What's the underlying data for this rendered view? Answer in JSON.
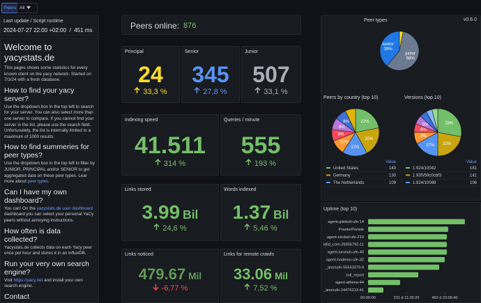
{
  "nav": {
    "tab": "Peers",
    "filter": "All"
  },
  "update": {
    "title": "Last update / Script runtime",
    "time": "2024-07-27 22:00 +02:00",
    "separator": "/",
    "runtime": "451 ms"
  },
  "welcome": {
    "title": "Welcome to yacystats.de",
    "intro": "This pages shows some statistics for every known client on the yacy network. Started on 7/3/24 with a fresh database.",
    "sections": [
      {
        "heading": "How to find your yacy server?",
        "body": [
          {
            "text": "Use the dropdown box in the top left to search for your server. You can also select more than one server to compare. If you cannot find your server in the list, please use the search field. Unfortunately, the list is internally limited to a maximum of 1000 results."
          }
        ]
      },
      {
        "heading": "How to find summeries for peer types?",
        "body": [
          {
            "text": "Use the dropdown box in the top left to filter by JUNIOR, PRINCIPAL and/or SENIOR to get aggregated data on these peer types. Lear more about "
          },
          {
            "link": "peer types"
          },
          {
            "text": "."
          }
        ]
      },
      {
        "heading": "Can I have my own dashboard?",
        "body": [
          {
            "text": "You can! On the "
          },
          {
            "link": "yacystats.de user dashboard"
          },
          {
            "text": " dashboard you can select your personal YaCy peers without annoying instructions."
          }
        ]
      },
      {
        "heading": "How often is data collected?",
        "body": [
          {
            "text": "Yacystats.de collects data on each Yacy peer once per hour and stores it in an InfluxDB."
          }
        ]
      },
      {
        "heading": "Run your very own search engine?",
        "body": [
          {
            "text": "Visit "
          },
          {
            "link": "https://yacy.net"
          },
          {
            "text": " and install your own search engine."
          }
        ]
      },
      {
        "heading": "Contact",
        "body": []
      }
    ]
  },
  "version": "v0.6.0",
  "peers_online": {
    "label": "Peers online:",
    "value": "876"
  },
  "stats": [
    {
      "title": "Principal",
      "value": "24",
      "change": "33,3 %",
      "trend": "up",
      "color": "#fade2a"
    },
    {
      "title": "Senior",
      "value": "345",
      "change": "27,8 %",
      "trend": "up",
      "color": "#5794f2"
    },
    {
      "title": "Junior",
      "value": "507",
      "change": "33,1 %",
      "trend": "up",
      "color": "#a8adb8"
    },
    {
      "title": "Indexing speed",
      "value": "41.511",
      "change": "314 %",
      "trend": "up",
      "color": "#73bf69"
    },
    {
      "title": "Queries / minute",
      "value": "555",
      "change": "193 %",
      "trend": "up",
      "color": "#73bf69"
    },
    {
      "title": "Links stored",
      "value": "3.99",
      "unit": "Bil",
      "change": "24,6 %",
      "trend": "up",
      "color": "#73bf69"
    },
    {
      "title": "Words indexed",
      "value": "1.37",
      "unit": "Bil",
      "change": "5,46 %",
      "trend": "up",
      "color": "#73bf69"
    },
    {
      "title": "Links noticed",
      "value": "479.67",
      "unit": "Mil",
      "change": "-6,77 %",
      "trend": "down",
      "color": "#5f9a56"
    },
    {
      "title": "Links for remote crawls",
      "value": "33.06",
      "unit": "Mil",
      "change": "7,52 %",
      "trend": "up",
      "color": "#73bf69"
    }
  ],
  "peer_types": {
    "type": "pie",
    "title": "Peer types",
    "values": [
      3,
      58,
      39
    ],
    "labels": [
      null,
      "junior",
      "senior"
    ],
    "value_labels": [
      null,
      "58%",
      "39%"
    ],
    "colors": [
      "#fade2a",
      "#6c7a91",
      "#1f78e4"
    ]
  },
  "countries": {
    "type": "pie",
    "title": "Peers by country (top 10)",
    "values": [
      22,
      20,
      17,
      10,
      8,
      8,
      8,
      7
    ],
    "value_labels": [
      "22%",
      "20%",
      "17%",
      "10%",
      "8%",
      "8%",
      "8%",
      null
    ],
    "colors": [
      "#73bf69",
      "#c9a50d",
      "#5794f2",
      "#ff9830",
      "#f2495c",
      "#b877d9",
      "#3d71d9",
      "#e0b400"
    ],
    "legend_header": "Value",
    "legend": [
      {
        "name": "United States",
        "value": 143
      },
      {
        "name": "Germany",
        "value": 130
      },
      {
        "name": "The Netherlands",
        "value": 109
      }
    ]
  },
  "versions": {
    "type": "pie",
    "title": "Versions (top 10)",
    "values": [
      28,
      22,
      17,
      8,
      6,
      6,
      5,
      4,
      4
    ],
    "value_labels": [
      "28%",
      "22%",
      "17%",
      "8%",
      "6%",
      "6%",
      null,
      null,
      null
    ],
    "colors": [
      "#73bf69",
      "#c9a50d",
      "#5794f2",
      "#ff9830",
      "#f2495c",
      "#b877d9",
      "#3d71d9",
      "#8ab8ff",
      "#96d98d"
    ],
    "legend_header": "Value",
    "legend": [
      {
        "name": "1.924/10042",
        "value": 181
      },
      {
        "name": "1.930/59c0cbf3",
        "value": 141
      },
      {
        "name": "1.924/10069",
        "value": 106
      }
    ]
  },
  "uptime": {
    "type": "bar",
    "title": "Uptime (top 10)",
    "color": "#73bf69",
    "categories": [
      "agent-gilebod-ufe-14",
      "PraetorPortale",
      "agent-sirolod-ufe-210",
      "idlid_com-39356792-11",
      "agent-lurunub-ufe-40",
      "agent-hodenor-ufe-32",
      "_anonufe-55543379-9",
      "zoll_report",
      "agent-athena-44",
      "_anonufe-24476213-41"
    ],
    "values": [
      50500000,
      41800000,
      41100000,
      41100000,
      41100000,
      40000000,
      37100000,
      26200000,
      16700000,
      8000000
    ],
    "xlim": [
      0,
      52000000
    ],
    "xticks": [
      {
        "value": 0,
        "label": "00:00:00"
      },
      {
        "value": 20000000,
        "label": "231 d 11:33:20"
      },
      {
        "value": 40000000,
        "label": "462 d 23:06:40"
      }
    ]
  }
}
